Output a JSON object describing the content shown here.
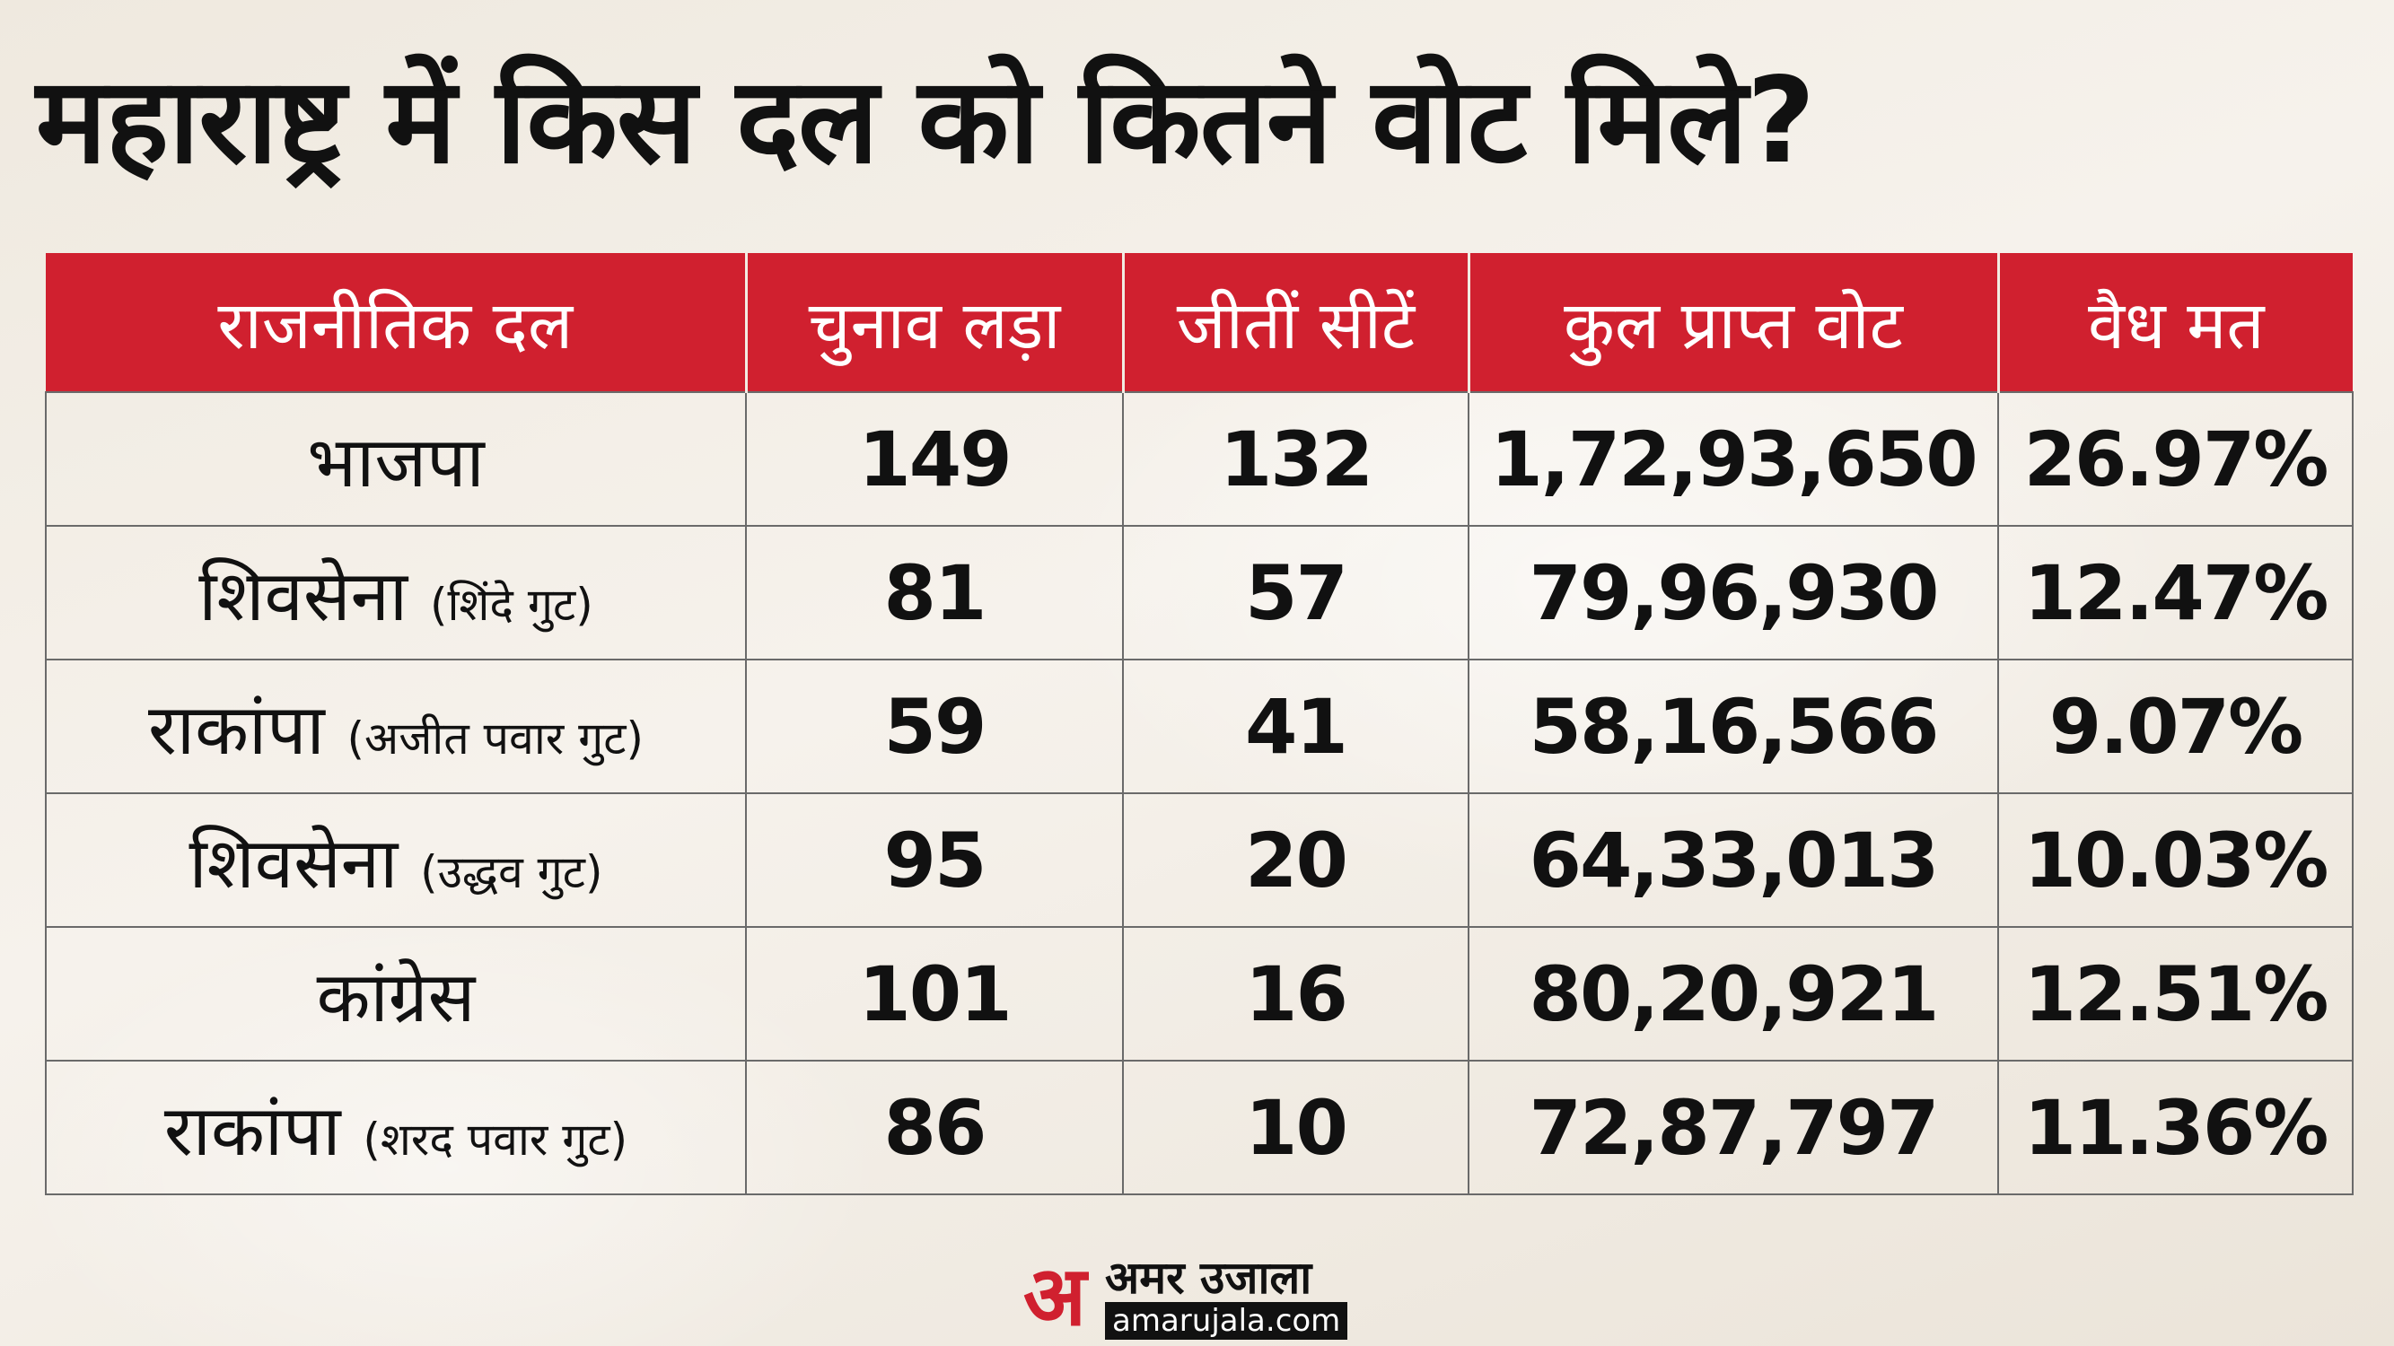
{
  "title": "महाराष्ट्र में किस दल को कितने वोट मिले?",
  "table": {
    "headers": [
      "राजनीतिक दल",
      "चुनाव लड़ा",
      "जीतीं सीटें",
      "कुल प्राप्त वोट",
      "वैध मत"
    ],
    "rows": [
      {
        "party": "भाजपा",
        "faction": "",
        "contested": "149",
        "won": "132",
        "votes": "1,72,93,650",
        "share": "26.97%"
      },
      {
        "party": "शिवसेना",
        "faction": "(शिंदे गुट)",
        "contested": "81",
        "won": "57",
        "votes": "79,96,930",
        "share": "12.47%"
      },
      {
        "party": "राकांपा",
        "faction": "(अजीत पवार गुट)",
        "contested": "59",
        "won": "41",
        "votes": "58,16,566",
        "share": "9.07%"
      },
      {
        "party": "शिवसेना",
        "faction": "(उद्धव गुट)",
        "contested": "95",
        "won": "20",
        "votes": "64,33,013",
        "share": "10.03%"
      },
      {
        "party": "कांग्रेस",
        "faction": "",
        "contested": "101",
        "won": "16",
        "votes": "80,20,921",
        "share": "12.51%"
      },
      {
        "party": "राकांपा",
        "faction": "(शरद पवार गुट)",
        "contested": "86",
        "won": "10",
        "votes": "72,87,797",
        "share": "11.36%"
      }
    ]
  },
  "logo": {
    "mark": "अ",
    "name": "अमर उजाला",
    "url": "amarujala.com"
  },
  "colors": {
    "header_bg": "#d0202f",
    "header_text": "#ffffff",
    "page_bg": "#f1ece4",
    "text": "#111111"
  }
}
